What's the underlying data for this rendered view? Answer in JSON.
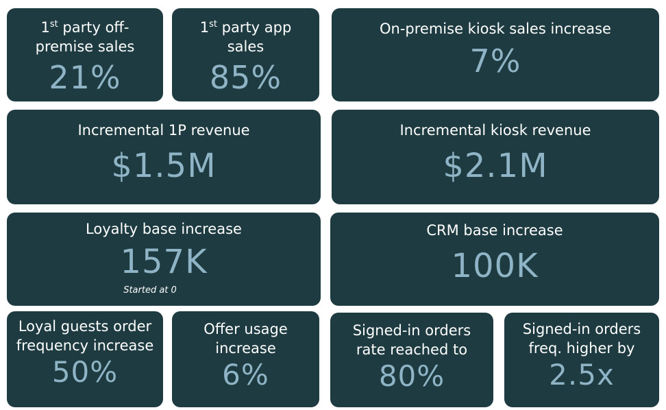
{
  "tiles": {
    "first_party_offpremise": {
      "sup": "st",
      "label_prefix": "1",
      "label_rest": " party off-\npremise sales",
      "value": "21%"
    },
    "first_party_app": {
      "sup": "st",
      "label_prefix": "1",
      "label_rest": " party app\nsales",
      "value": "85%"
    },
    "kiosk_sales": {
      "label": "On-premise kiosk sales increase",
      "value": "7%"
    },
    "incremental_1p": {
      "label": "Incremental 1P revenue",
      "value": "$1.5M"
    },
    "incremental_kiosk": {
      "label": "Incremental kiosk revenue",
      "value": "$2.1M"
    },
    "loyalty_base": {
      "label": "Loyalty base increase",
      "value": "157K",
      "note": "Started at 0"
    },
    "crm_base": {
      "label": "CRM base increase",
      "value": "100K"
    },
    "loyal_guests": {
      "label": "Loyal guests order\nfrequency increase",
      "value": "50%"
    },
    "offer_usage": {
      "label": "Offer usage\nincrease",
      "value": "6%"
    },
    "signed_in_rate": {
      "label": "Signed-in orders\nrate reached to",
      "value": "80%"
    },
    "signed_in_freq": {
      "label": "Signed-in orders\nfreq. higher by",
      "value": "2.5x"
    }
  },
  "colors": {
    "tile_background": "#1d3b40",
    "label_text": "#ffffff",
    "value_text": "#8fb4c6",
    "page_background": "#ffffff"
  }
}
